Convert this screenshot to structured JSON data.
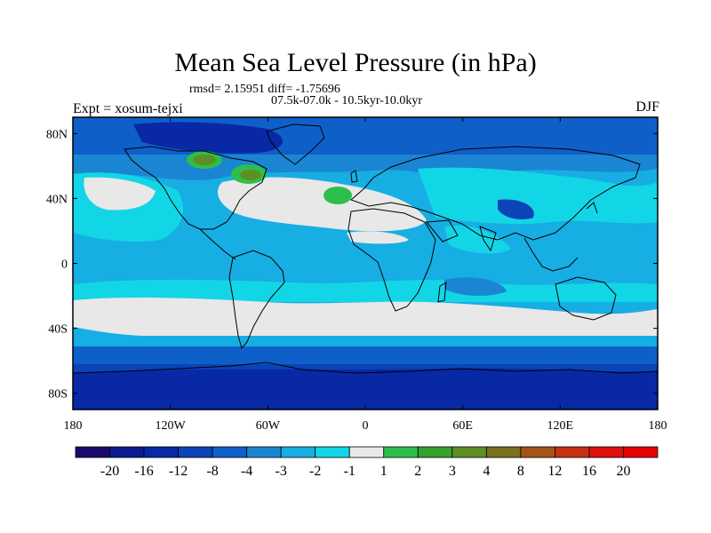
{
  "chart_data": {
    "type": "heatmap",
    "title": "Mean Sea Level Pressure (in hPa)",
    "stats": "rmsd= 2.15951 diff= -1.75696",
    "period": "07.5k-07.0k - 10.5kyr-10.0kyr",
    "experiment": "Expt = xosum-tejxi",
    "season": "DJF",
    "xlim": [
      -180,
      180
    ],
    "ylim": [
      -90,
      90
    ],
    "x_ticks": [
      {
        "value": -180,
        "label": "180"
      },
      {
        "value": -120,
        "label": "120W"
      },
      {
        "value": -60,
        "label": "60W"
      },
      {
        "value": 0,
        "label": "0"
      },
      {
        "value": 60,
        "label": "60E"
      },
      {
        "value": 120,
        "label": "120E"
      },
      {
        "value": 180,
        "label": "180"
      }
    ],
    "y_ticks": [
      {
        "value": 80,
        "label": "80N"
      },
      {
        "value": 40,
        "label": "40N"
      },
      {
        "value": 0,
        "label": "0"
      },
      {
        "value": -40,
        "label": "40S"
      },
      {
        "value": -80,
        "label": "80S"
      }
    ],
    "colorbar": {
      "labels": [
        "-20",
        "-16",
        "-12",
        "-8",
        "-4",
        "-3",
        "-2",
        "-1",
        "1",
        "2",
        "3",
        "4",
        "8",
        "12",
        "16",
        "20"
      ],
      "colors": [
        "#1a0a6e",
        "#0c1b8f",
        "#0828a6",
        "#0a44b8",
        "#0f5fc8",
        "#1a86d3",
        "#17aee3",
        "#12d6e6",
        "#e8e8e8",
        "#2dbf4b",
        "#36a12f",
        "#5f8e23",
        "#7a6f1c",
        "#a45418",
        "#c43112",
        "#de0f0c",
        "#e60000"
      ]
    },
    "field_description_regions": [
      {
        "name": "equatorial-band",
        "lat": [
          -25,
          35
        ],
        "class": "-2..-1"
      },
      {
        "name": "subtropical-south",
        "lat": [
          -50,
          -28
        ],
        "class": "-1..1"
      },
      {
        "name": "north-atlantic-subtropics",
        "lat": [
          10,
          45
        ],
        "lon": [
          -70,
          -10
        ],
        "class": "-1..1"
      },
      {
        "name": "southern-ocean",
        "lat": [
          -90,
          -55
        ],
        "class": "-12..-8"
      },
      {
        "name": "arctic",
        "lat": [
          65,
          90
        ],
        "class": "-8..-4"
      },
      {
        "name": "canada-positive",
        "lat": [
          50,
          75
        ],
        "lon": [
          -100,
          -70
        ],
        "class": "3..8"
      },
      {
        "name": "mid-atlantic-positive",
        "lat": [
          38,
          46
        ],
        "lon": [
          -32,
          -20
        ],
        "class": "1..2"
      }
    ]
  }
}
